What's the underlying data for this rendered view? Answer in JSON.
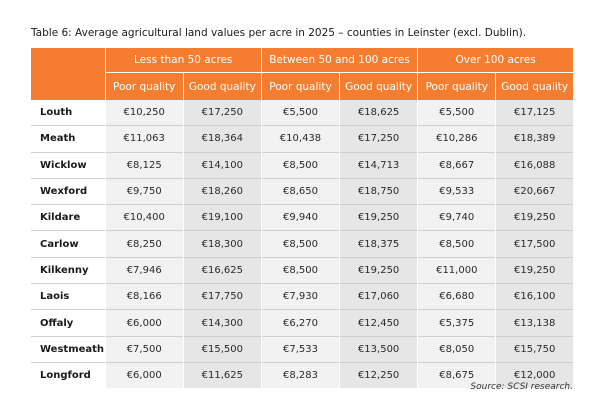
{
  "title": "Table 6: Average agricultural land values per acre in 2025 – counties in Leinster (excl. Dublin).",
  "groups": [
    "Less than 50 acres",
    "Between 50 and 100 acres",
    "Over 100 acres"
  ],
  "subheaders": [
    "Poor quality",
    "Good quality",
    "Poor quality",
    "Good quality",
    "Poor quality",
    "Good quality"
  ],
  "rows": [
    {
      "county": "Louth",
      "values": [
        "€10,250",
        "€17,250",
        "€5,500",
        "€18,625",
        "€5,500",
        "€17,125"
      ]
    },
    {
      "county": "Meath",
      "values": [
        "€11,063",
        "€18,364",
        "€10,438",
        "€17,250",
        "€10,286",
        "€18,389"
      ]
    },
    {
      "county": "Wicklow",
      "values": [
        "€8,125",
        "€14,100",
        "€8,500",
        "€14,713",
        "€8,667",
        "€16,088"
      ]
    },
    {
      "county": "Wexford",
      "values": [
        "€9,750",
        "€18,260",
        "€8,650",
        "€18,750",
        "€9,533",
        "€20,667"
      ]
    },
    {
      "county": "Kildare",
      "values": [
        "€10,400",
        "€19,100",
        "€9,940",
        "€19,250",
        "€9,740",
        "€19,250"
      ]
    },
    {
      "county": "Carlow",
      "values": [
        "€8,250",
        "€18,300",
        "€8,500",
        "€18,375",
        "€8,500",
        "€17,500"
      ]
    },
    {
      "county": "Kilkenny",
      "values": [
        "€7,946",
        "€16,625",
        "€8,500",
        "€19,250",
        "€11,000",
        "€19,250"
      ]
    },
    {
      "county": "Laois",
      "values": [
        "€8,166",
        "€17,750",
        "€7,930",
        "€17,060",
        "€6,680",
        "€16,100"
      ]
    },
    {
      "county": "Offaly",
      "values": [
        "€6,000",
        "€14,300",
        "€6,270",
        "€12,450",
        "€5,375",
        "€13,138"
      ]
    },
    {
      "county": "Westmeath",
      "values": [
        "€7,500",
        "€15,500",
        "€7,533",
        "€13,500",
        "€8,050",
        "€15,750"
      ]
    },
    {
      "county": "Longford",
      "values": [
        "€6,000",
        "€11,625",
        "€8,283",
        "€12,250",
        "€8,675",
        "€12,000"
      ]
    }
  ],
  "source": "Source: SCSI research.",
  "colors": {
    "header": "#f47d30",
    "poor_col": "#f2f2f2",
    "good_col": "#e6e6e6"
  }
}
